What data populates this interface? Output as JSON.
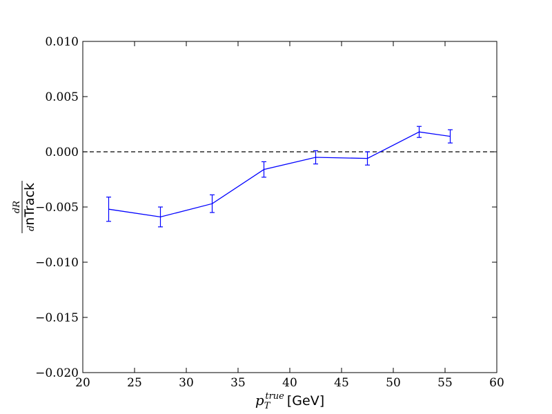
{
  "chart_data": {
    "type": "line",
    "title": "",
    "xlabel": {
      "main": "p",
      "sub": "T",
      "sup": "true",
      "unit": "[GeV]"
    },
    "ylabel": {
      "numerator": "dR",
      "denominator_d": "d",
      "denominator_text": "nTrack"
    },
    "xlim": [
      20,
      60
    ],
    "ylim": [
      -0.02,
      0.01
    ],
    "x_ticks": [
      20,
      25,
      30,
      35,
      40,
      45,
      50,
      55,
      60
    ],
    "y_ticks": [
      -0.02,
      -0.015,
      -0.01,
      -0.005,
      0.0,
      0.005,
      0.01
    ],
    "x_tick_labels": [
      "20",
      "25",
      "30",
      "35",
      "40",
      "45",
      "50",
      "55",
      "60"
    ],
    "y_tick_labels": [
      "−0.020",
      "−0.015",
      "−0.010",
      "−0.005",
      "0.000",
      "0.005",
      "0.010"
    ],
    "reference_line": {
      "y": 0.0,
      "style": "dashed",
      "color": "#000000"
    },
    "grid": false,
    "series": [
      {
        "color": "#0000ff",
        "x": [
          22.5,
          27.5,
          32.5,
          37.5,
          42.5,
          47.5,
          52.5,
          55.5
        ],
        "y": [
          -0.0052,
          -0.0059,
          -0.0047,
          -0.0016,
          -0.0005,
          -0.0006,
          0.0018,
          0.0014
        ],
        "yerr": [
          0.0011,
          0.0009,
          0.0008,
          0.0007,
          0.0006,
          0.0006,
          0.0005,
          0.0006
        ]
      }
    ]
  }
}
